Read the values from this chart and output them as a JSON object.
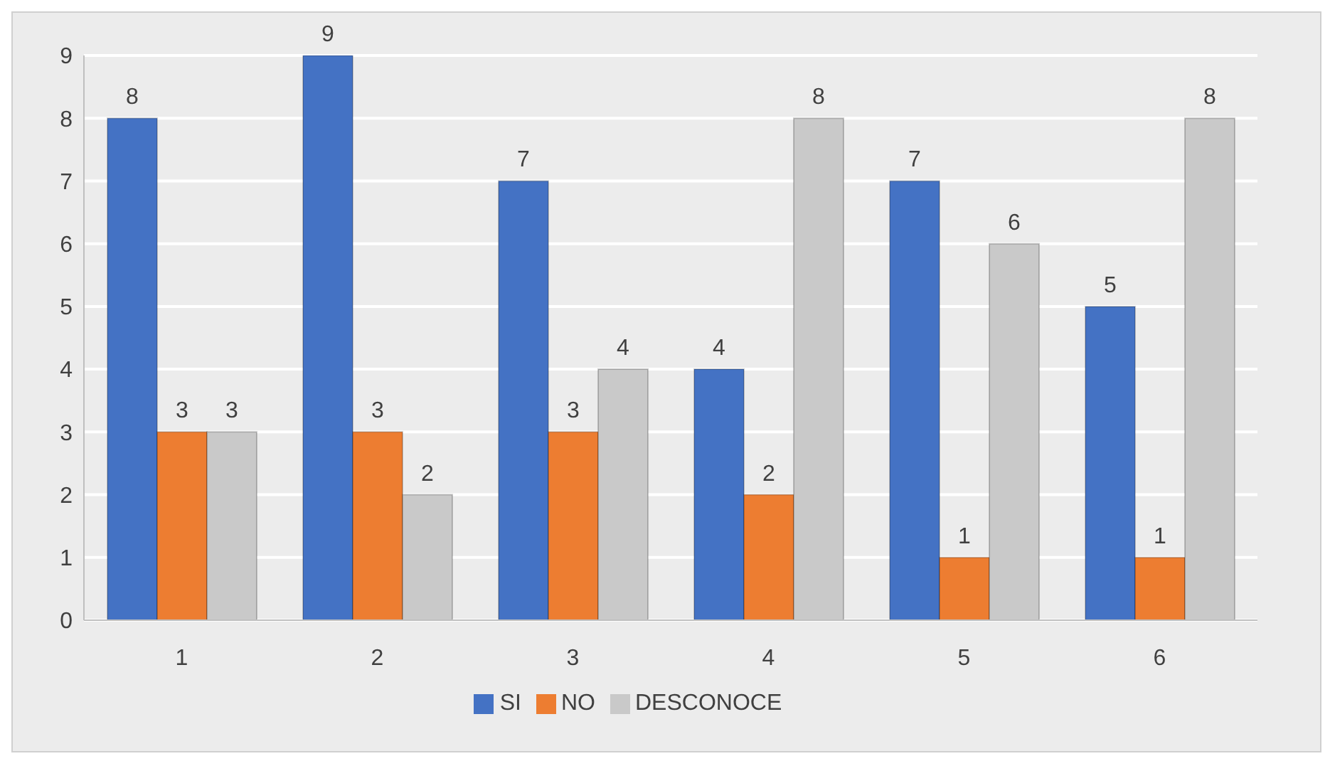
{
  "chart_data": {
    "type": "bar",
    "categories": [
      "1",
      "2",
      "3",
      "4",
      "5",
      "6"
    ],
    "series": [
      {
        "name": "SI",
        "color": "#4472c4",
        "values": [
          8,
          9,
          7,
          4,
          7,
          5
        ]
      },
      {
        "name": "NO",
        "color": "#ed7d31",
        "values": [
          3,
          3,
          3,
          2,
          1,
          1
        ]
      },
      {
        "name": "DESCONOCE",
        "color": "#c9c9c9",
        "values": [
          3,
          2,
          4,
          8,
          6,
          8
        ]
      }
    ],
    "ylim": [
      0,
      9
    ],
    "yticks": [
      0,
      1,
      2,
      3,
      4,
      5,
      6,
      7,
      8,
      9
    ],
    "grid": "y",
    "legend": "bottom",
    "data_labels": true
  }
}
